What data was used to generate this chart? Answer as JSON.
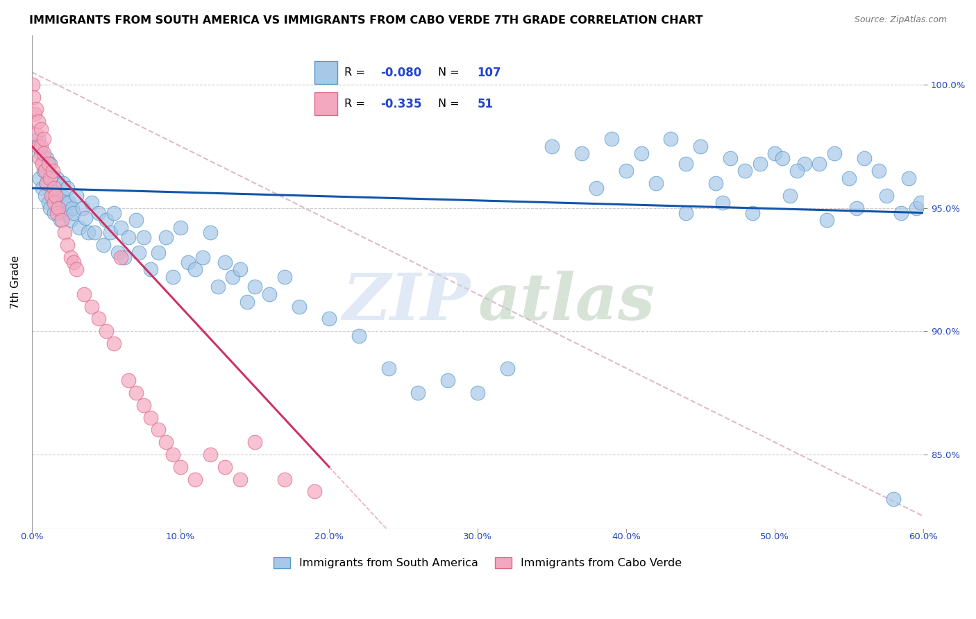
{
  "title": "IMMIGRANTS FROM SOUTH AMERICA VS IMMIGRANTS FROM CABO VERDE 7TH GRADE CORRELATION CHART",
  "source_text": "Source: ZipAtlas.com",
  "ylabel_text": "7th Grade",
  "xlim": [
    0.0,
    60.0
  ],
  "ylim": [
    82.0,
    102.0
  ],
  "x_ticks": [
    0.0,
    10.0,
    20.0,
    30.0,
    40.0,
    50.0,
    60.0
  ],
  "x_tick_labels": [
    "0.0%",
    "10.0%",
    "20.0%",
    "30.0%",
    "40.0%",
    "50.0%",
    "60.0%"
  ],
  "y_ticks": [
    85.0,
    90.0,
    95.0,
    100.0
  ],
  "y_tick_labels": [
    "85.0%",
    "90.0%",
    "95.0%",
    "100.0%"
  ],
  "blue_color": "#a8c8e8",
  "pink_color": "#f4a8c0",
  "blue_edge": "#5599cc",
  "pink_edge": "#dd6688",
  "blue_line_color": "#1155aa",
  "pink_line_color": "#cc3366",
  "ref_line_color": "#ddbbcc",
  "grid_color": "#cccccc",
  "legend_blue_R": "-0.080",
  "legend_blue_N": "107",
  "legend_pink_R": "-0.335",
  "legend_pink_N": "51",
  "legend_label_blue": "Immigrants from South America",
  "legend_label_pink": "Immigrants from Cabo Verde",
  "blue_scatter_x": [
    0.4,
    0.5,
    0.6,
    0.7,
    0.8,
    0.9,
    1.0,
    1.0,
    1.1,
    1.2,
    1.2,
    1.3,
    1.4,
    1.5,
    1.5,
    1.6,
    1.7,
    1.8,
    1.9,
    2.0,
    2.1,
    2.2,
    2.3,
    2.4,
    2.5,
    2.6,
    2.7,
    2.8,
    3.0,
    3.2,
    3.4,
    3.6,
    3.8,
    4.0,
    4.2,
    4.5,
    4.8,
    5.0,
    5.3,
    5.5,
    5.8,
    6.0,
    6.2,
    6.5,
    7.0,
    7.2,
    7.5,
    8.0,
    8.5,
    9.0,
    9.5,
    10.0,
    10.5,
    11.0,
    11.5,
    12.0,
    12.5,
    13.0,
    13.5,
    14.0,
    14.5,
    15.0,
    16.0,
    17.0,
    18.0,
    20.0,
    22.0,
    24.0,
    26.0,
    28.0,
    30.0,
    32.0,
    35.0,
    37.0,
    39.0,
    41.0,
    43.0,
    45.0,
    47.0,
    49.0,
    50.0,
    52.0,
    54.0,
    56.0,
    58.0,
    40.0,
    42.0,
    44.0,
    46.0,
    48.0,
    50.5,
    51.5,
    53.0,
    55.0,
    57.0,
    59.0,
    38.0,
    44.0,
    46.5,
    48.5,
    51.0,
    53.5,
    55.5,
    57.5,
    59.5,
    59.8,
    58.5
  ],
  "blue_scatter_y": [
    97.8,
    96.2,
    97.2,
    95.8,
    96.5,
    95.5,
    96.0,
    97.0,
    95.2,
    96.8,
    95.0,
    96.2,
    95.5,
    96.0,
    94.8,
    95.8,
    96.2,
    95.0,
    94.5,
    95.5,
    96.0,
    95.2,
    94.8,
    95.8,
    95.2,
    94.5,
    95.0,
    94.8,
    95.5,
    94.2,
    95.0,
    94.6,
    94.0,
    95.2,
    94.0,
    94.8,
    93.5,
    94.5,
    94.0,
    94.8,
    93.2,
    94.2,
    93.0,
    93.8,
    94.5,
    93.2,
    93.8,
    92.5,
    93.2,
    93.8,
    92.2,
    94.2,
    92.8,
    92.5,
    93.0,
    94.0,
    91.8,
    92.8,
    92.2,
    92.5,
    91.2,
    91.8,
    91.5,
    92.2,
    91.0,
    90.5,
    89.8,
    88.5,
    87.5,
    88.0,
    87.5,
    88.5,
    97.5,
    97.2,
    97.8,
    97.2,
    97.8,
    97.5,
    97.0,
    96.8,
    97.2,
    96.8,
    97.2,
    97.0,
    83.2,
    96.5,
    96.0,
    96.8,
    96.0,
    96.5,
    97.0,
    96.5,
    96.8,
    96.2,
    96.5,
    96.2,
    95.8,
    94.8,
    95.2,
    94.8,
    95.5,
    94.5,
    95.0,
    95.5,
    95.0,
    95.2,
    94.8
  ],
  "pink_scatter_x": [
    0.05,
    0.1,
    0.2,
    0.3,
    0.4,
    0.5,
    0.6,
    0.7,
    0.8,
    0.9,
    1.0,
    1.1,
    1.2,
    1.3,
    1.4,
    1.5,
    1.5,
    1.6,
    1.7,
    1.8,
    2.0,
    2.2,
    2.4,
    2.6,
    2.8,
    3.0,
    3.5,
    4.0,
    4.5,
    5.0,
    5.5,
    6.0,
    6.5,
    7.0,
    7.5,
    8.0,
    8.5,
    9.0,
    9.5,
    10.0,
    11.0,
    12.0,
    13.0,
    14.0,
    15.0,
    17.0,
    19.0,
    0.3,
    0.4,
    0.6,
    0.8
  ],
  "pink_scatter_y": [
    100.0,
    99.5,
    98.8,
    98.0,
    97.5,
    97.0,
    97.5,
    96.8,
    97.2,
    96.5,
    96.0,
    96.8,
    96.2,
    95.5,
    96.5,
    95.8,
    95.2,
    95.5,
    94.8,
    95.0,
    94.5,
    94.0,
    93.5,
    93.0,
    92.8,
    92.5,
    91.5,
    91.0,
    90.5,
    90.0,
    89.5,
    93.0,
    88.0,
    87.5,
    87.0,
    86.5,
    86.0,
    85.5,
    85.0,
    84.5,
    84.0,
    85.0,
    84.5,
    84.0,
    85.5,
    84.0,
    83.5,
    99.0,
    98.5,
    98.2,
    97.8
  ],
  "blue_trend_x0": 0.0,
  "blue_trend_y0": 95.8,
  "blue_trend_x1": 60.0,
  "blue_trend_y1": 94.8,
  "pink_trend_x0": 0.0,
  "pink_trend_y0": 97.5,
  "pink_trend_x1": 20.0,
  "pink_trend_y1": 84.5,
  "ref_line_x0": 0.0,
  "ref_line_y0": 100.5,
  "ref_line_x1": 60.0,
  "ref_line_y1": 82.5
}
